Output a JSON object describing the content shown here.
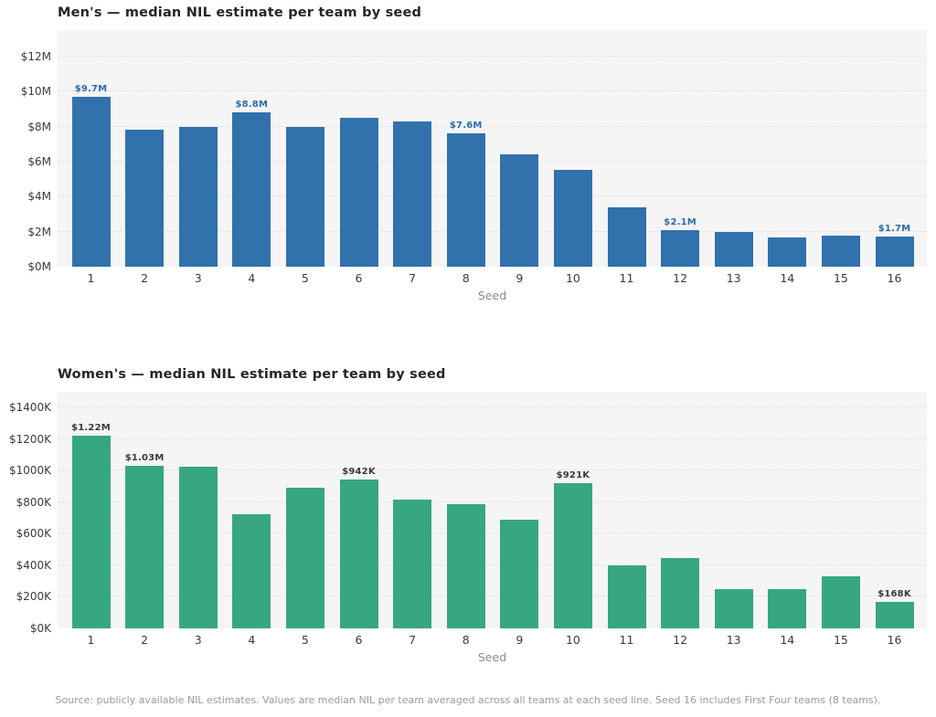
{
  "chart_data": [
    {
      "type": "bar",
      "title": "Men's — median NIL estimate per team by seed",
      "xlabel": "Seed",
      "value_unit": "$M",
      "categories": [
        "1",
        "2",
        "3",
        "4",
        "5",
        "6",
        "7",
        "8",
        "9",
        "10",
        "11",
        "12",
        "13",
        "14",
        "15",
        "16"
      ],
      "values": [
        9.7,
        7.8,
        8.0,
        8.8,
        7.95,
        8.5,
        8.3,
        7.6,
        6.4,
        5.5,
        3.4,
        2.1,
        2.0,
        1.65,
        1.75,
        1.7
      ],
      "ylim": [
        0,
        13.5
      ],
      "yticks": [
        {
          "value": 0,
          "label": "$0M"
        },
        {
          "value": 2,
          "label": "$2M"
        },
        {
          "value": 4,
          "label": "$4M"
        },
        {
          "value": 6,
          "label": "$6M"
        },
        {
          "value": 8,
          "label": "$8M"
        },
        {
          "value": 10,
          "label": "$10M"
        },
        {
          "value": 12,
          "label": "$12M"
        }
      ],
      "bar_labels": {
        "0": "$9.7M",
        "3": "$8.8M",
        "7": "$7.6M",
        "11": "$2.1M",
        "15": "$1.7M"
      },
      "bar_color": "#3171ac",
      "label_color": "#2d6ba8",
      "grid": true,
      "legend": false
    },
    {
      "type": "bar",
      "title": "Women's — median NIL estimate per team by seed",
      "xlabel": "Seed",
      "value_unit": "$K",
      "categories": [
        "1",
        "2",
        "3",
        "4",
        "5",
        "6",
        "7",
        "8",
        "9",
        "10",
        "11",
        "12",
        "13",
        "14",
        "15",
        "16"
      ],
      "values": [
        1220,
        1030,
        1025,
        725,
        893,
        942,
        815,
        790,
        690,
        921,
        400,
        445,
        250,
        252,
        330,
        168
      ],
      "ylim": [
        0,
        1500
      ],
      "yticks": [
        {
          "value": 0,
          "label": "$0K"
        },
        {
          "value": 200,
          "label": "$200K"
        },
        {
          "value": 400,
          "label": "$400K"
        },
        {
          "value": 600,
          "label": "$600K"
        },
        {
          "value": 800,
          "label": "$800K"
        },
        {
          "value": 1000,
          "label": "$1000K"
        },
        {
          "value": 1200,
          "label": "$1200K"
        },
        {
          "value": 1400,
          "label": "$1400K"
        }
      ],
      "bar_labels": {
        "0": "$1.22M",
        "1": "$1.03M",
        "5": "$942K",
        "9": "$921K",
        "15": "$168K"
      },
      "bar_color": "#37a77f",
      "label_color": "#3a3a3a",
      "grid": true,
      "legend": false
    }
  ],
  "footer": {
    "source": "Source: publicly available NIL estimates. Values are median NIL per team averaged across all teams at each seed line. Seed 16 includes First Four teams (8 teams)."
  },
  "colors": {
    "page_bg": "#ffffff",
    "plot_bg": "#f5f5f5",
    "grid_color": "#e0e0e0",
    "tick_color": "#3b3b3b",
    "title_color": "#262626",
    "axis_label_color": "#8b8b8b",
    "footer_color": "#9b9b9b",
    "mens_bar": "#3171ac",
    "womens_bar": "#37a77f"
  }
}
